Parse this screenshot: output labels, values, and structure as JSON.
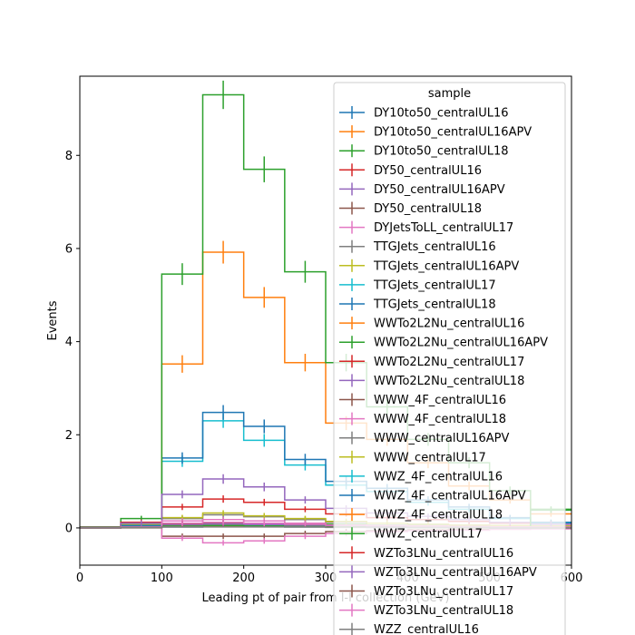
{
  "chart_data": {
    "type": "histogram-step",
    "xlabel": "Leading pt of pair from l-l collection (GeV)",
    "ylabel": "Events",
    "xlim": [
      0,
      600
    ],
    "ylim": [
      -0.8,
      9.7
    ],
    "xticks": [
      0,
      100,
      200,
      300,
      400,
      500,
      600
    ],
    "yticks": [
      0,
      2,
      4,
      6,
      8
    ],
    "bin_edges": [
      0,
      50,
      100,
      150,
      200,
      250,
      300,
      350,
      400,
      450,
      500,
      550,
      600
    ],
    "legend_title": "sample",
    "legend_position": "top-right",
    "series": [
      {
        "name": "DY10to50_centralUL16",
        "color": "#1f77b4",
        "values": [
          0.01,
          0.02,
          0.05,
          0.06,
          0.05,
          0.04,
          0.03,
          0.03,
          0.02,
          0.02,
          0.01,
          0.01
        ]
      },
      {
        "name": "DY10to50_centralUL16APV",
        "color": "#ff7f0e",
        "values": [
          0.01,
          0.03,
          0.08,
          0.1,
          0.08,
          0.06,
          0.05,
          0.04,
          0.03,
          0.02,
          0.02,
          0.01
        ]
      },
      {
        "name": "DY10to50_centralUL18",
        "color": "#2ca02c",
        "values": [
          0.02,
          0.05,
          0.15,
          0.18,
          0.15,
          0.1,
          0.08,
          0.06,
          0.05,
          0.04,
          0.03,
          0.02
        ]
      },
      {
        "name": "DY50_centralUL16",
        "color": "#d62728",
        "values": [
          0.01,
          0.03,
          0.08,
          0.1,
          0.09,
          0.07,
          0.06,
          0.05,
          0.04,
          0.03,
          0.02,
          0.02
        ]
      },
      {
        "name": "DY50_centralUL16APV",
        "color": "#9467bd",
        "values": [
          0.0,
          0.02,
          0.06,
          0.08,
          0.07,
          0.06,
          0.05,
          0.04,
          0.03,
          0.02,
          0.02,
          0.01
        ]
      },
      {
        "name": "DY50_centralUL18",
        "color": "#8c564b",
        "values": [
          0.0,
          0.0,
          -0.18,
          -0.18,
          -0.18,
          -0.12,
          -0.08,
          -0.06,
          -0.04,
          -0.03,
          -0.02,
          -0.01
        ]
      },
      {
        "name": "DYJetsToLL_centralUL17",
        "color": "#e377c2",
        "values": [
          0.0,
          0.0,
          -0.22,
          -0.32,
          -0.28,
          -0.18,
          -0.12,
          -0.08,
          -0.06,
          -0.05,
          -0.03,
          -0.02
        ]
      },
      {
        "name": "TTGJets_centralUL16",
        "color": "#7f7f7f",
        "values": [
          0.01,
          0.08,
          0.2,
          0.28,
          0.24,
          0.18,
          0.12,
          0.1,
          0.08,
          0.06,
          0.05,
          0.04
        ]
      },
      {
        "name": "TTGJets_centralUL16APV",
        "color": "#bcbd22",
        "values": [
          0.01,
          0.07,
          0.22,
          0.32,
          0.26,
          0.2,
          0.14,
          0.1,
          0.08,
          0.06,
          0.05,
          0.04
        ]
      },
      {
        "name": "TTGJets_centralUL17",
        "color": "#17becf",
        "values": [
          0.01,
          0.05,
          1.43,
          2.3,
          1.88,
          1.35,
          0.92,
          0.78,
          0.55,
          0.4,
          0.2,
          0.1
        ]
      },
      {
        "name": "TTGJets_centralUL18",
        "color": "#1f77b4",
        "values": [
          0.01,
          0.05,
          1.5,
          2.48,
          2.18,
          1.47,
          1.0,
          0.85,
          0.6,
          0.45,
          0.22,
          0.12
        ]
      },
      {
        "name": "WWTo2L2Nu_centralUL16",
        "color": "#ff7f0e",
        "values": [
          0.02,
          0.12,
          3.52,
          5.92,
          4.95,
          3.55,
          2.25,
          1.9,
          1.4,
          0.9,
          0.6,
          0.3
        ]
      },
      {
        "name": "WWTo2L2Nu_centralUL16APV",
        "color": "#2ca02c",
        "values": [
          0.02,
          0.2,
          5.45,
          9.3,
          7.7,
          5.5,
          3.55,
          2.6,
          1.9,
          1.4,
          0.8,
          0.4
        ]
      },
      {
        "name": "WWTo2L2Nu_centralUL17",
        "color": "#d62728",
        "values": [
          0.01,
          0.12,
          0.45,
          0.62,
          0.55,
          0.4,
          0.3,
          0.22,
          0.18,
          0.14,
          0.1,
          0.08
        ]
      },
      {
        "name": "WWTo2L2Nu_centralUL18",
        "color": "#9467bd",
        "values": [
          0.01,
          0.1,
          0.72,
          1.05,
          0.88,
          0.6,
          0.42,
          0.32,
          0.25,
          0.18,
          0.12,
          0.08
        ]
      },
      {
        "name": "WWW_4F_centralUL16",
        "color": "#8c564b",
        "values": [
          0.0,
          0.01,
          0.02,
          0.03,
          0.03,
          0.02,
          0.02,
          0.01,
          0.01,
          0.01,
          0.01,
          0.0
        ]
      },
      {
        "name": "WWW_4F_centralUL18",
        "color": "#e377c2",
        "values": [
          0.0,
          0.02,
          0.15,
          0.18,
          0.15,
          0.1,
          0.06,
          0.05,
          0.04,
          0.03,
          0.02,
          0.02
        ]
      },
      {
        "name": "WWW_centralUL16APV",
        "color": "#7f7f7f",
        "values": [
          0.0,
          0.01,
          0.03,
          0.04,
          0.03,
          0.03,
          0.02,
          0.02,
          0.01,
          0.01,
          0.01,
          0.0
        ]
      },
      {
        "name": "WWW_centralUL17",
        "color": "#bcbd22",
        "values": [
          0.0,
          0.01,
          0.04,
          0.05,
          0.04,
          0.03,
          0.02,
          0.02,
          0.01,
          0.01,
          0.01,
          0.0
        ]
      },
      {
        "name": "WWZ_4F_centralUL16",
        "color": "#17becf",
        "values": [
          0.0,
          0.01,
          0.03,
          0.04,
          0.04,
          0.03,
          0.02,
          0.02,
          0.01,
          0.01,
          0.01,
          0.0
        ]
      },
      {
        "name": "WWZ_4F_centralUL16APV",
        "color": "#1f77b4",
        "values": [
          0.0,
          0.01,
          0.02,
          0.03,
          0.03,
          0.02,
          0.02,
          0.01,
          0.01,
          0.01,
          0.0,
          0.0
        ]
      },
      {
        "name": "WWZ_4F_centralUL18",
        "color": "#ff7f0e",
        "values": [
          0.0,
          0.01,
          0.03,
          0.04,
          0.03,
          0.03,
          0.02,
          0.02,
          0.01,
          0.01,
          0.01,
          0.0
        ]
      },
      {
        "name": "WWZ_centralUL17",
        "color": "#2ca02c",
        "values": [
          0.0,
          0.01,
          0.04,
          0.05,
          0.04,
          0.04,
          0.03,
          0.02,
          0.02,
          0.01,
          0.01,
          0.38
        ]
      },
      {
        "name": "WZTo3LNu_centralUL16",
        "color": "#d62728",
        "values": [
          0.0,
          0.02,
          0.08,
          0.1,
          0.09,
          0.07,
          0.05,
          0.04,
          0.03,
          0.02,
          0.02,
          0.01
        ]
      },
      {
        "name": "WZTo3LNu_centralUL16APV",
        "color": "#9467bd",
        "values": [
          0.0,
          0.02,
          0.07,
          0.09,
          0.08,
          0.06,
          0.05,
          0.04,
          0.03,
          0.02,
          0.02,
          0.01
        ]
      },
      {
        "name": "WZTo3LNu_centralUL17",
        "color": "#8c564b",
        "values": [
          0.0,
          0.02,
          0.09,
          0.11,
          0.1,
          0.08,
          0.06,
          0.05,
          0.03,
          0.03,
          0.02,
          0.01
        ]
      },
      {
        "name": "WZTo3LNu_centralUL18",
        "color": "#e377c2",
        "values": [
          0.0,
          0.02,
          0.1,
          0.12,
          0.1,
          0.08,
          0.06,
          0.05,
          0.04,
          0.03,
          0.02,
          0.01
        ]
      },
      {
        "name": "WZZ_centralUL16",
        "color": "#7f7f7f",
        "values": [
          0.0,
          0.01,
          0.02,
          0.02,
          0.02,
          0.02,
          0.01,
          0.01,
          0.01,
          0.01,
          0.0,
          0.0
        ]
      }
    ]
  }
}
